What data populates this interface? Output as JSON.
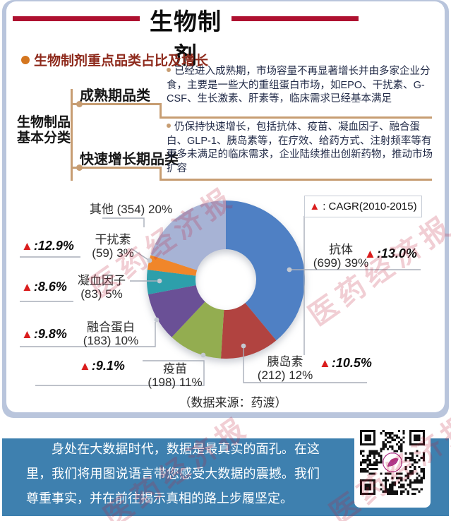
{
  "page": {
    "title": "生物制剂",
    "section_header": "生物制剂重点品类占比及增长",
    "source": "（数据来源：药渡）",
    "watermark": "医药经济报"
  },
  "classification": {
    "root_line1": "生物制品",
    "root_line2": "基本分类",
    "branches": [
      {
        "label": "成熟期品类",
        "description": "已经进入成熟期，市场容量不再显著增长并由多家企业分食，主要是一些大的重组蛋白市场，如EPO、干扰素、G-CSF、生长激素、肝素等，临床需求已经基本满足"
      },
      {
        "label": "快速增长期品类",
        "description": "仍保持快速增长，包括抗体、疫苗、凝血因子、融合蛋白、GLP-1、胰岛素等，在疗效、给药方式、注射频率等有更多未满足的临床需求，企业陆续推出创新药物，推动市场扩容"
      }
    ]
  },
  "chart_data": {
    "type": "pie",
    "donut": true,
    "title": "生物制剂重点品类占比及增长",
    "legend_marker": "▲",
    "legend_text": ": CAGR(2010-2015)",
    "legend_position": "top-right",
    "slices": [
      {
        "name": "抗体",
        "value": 699,
        "pct": 39,
        "cagr": "13.0",
        "color": "#4f80c4"
      },
      {
        "name": "胰岛素",
        "value": 212,
        "pct": 12,
        "cagr": "10.5",
        "color": "#b14340"
      },
      {
        "name": "疫苗",
        "value": 198,
        "pct": 11,
        "cagr": "9.1",
        "color": "#93ad50"
      },
      {
        "name": "融合蛋白",
        "value": 183,
        "pct": 10,
        "cagr": "9.8",
        "color": "#6a5096"
      },
      {
        "name": "凝血因子",
        "value": 83,
        "pct": 5,
        "cagr": "8.6",
        "color": "#2d9fab"
      },
      {
        "name": "干扰素",
        "value": 59,
        "pct": 3,
        "cagr": "12.9",
        "color": "#f0862a"
      },
      {
        "name": "其他",
        "value": 354,
        "pct": 20,
        "cagr": null,
        "color": "#a7b3d5"
      }
    ]
  },
  "footer": {
    "text": "身处在大数据时代，数据是最真实的面孔。在这里，我们将用图说语言带您感受大数据的震撼。我们尊重事实，并在前往揭示真相的路上步履坚定。"
  }
}
